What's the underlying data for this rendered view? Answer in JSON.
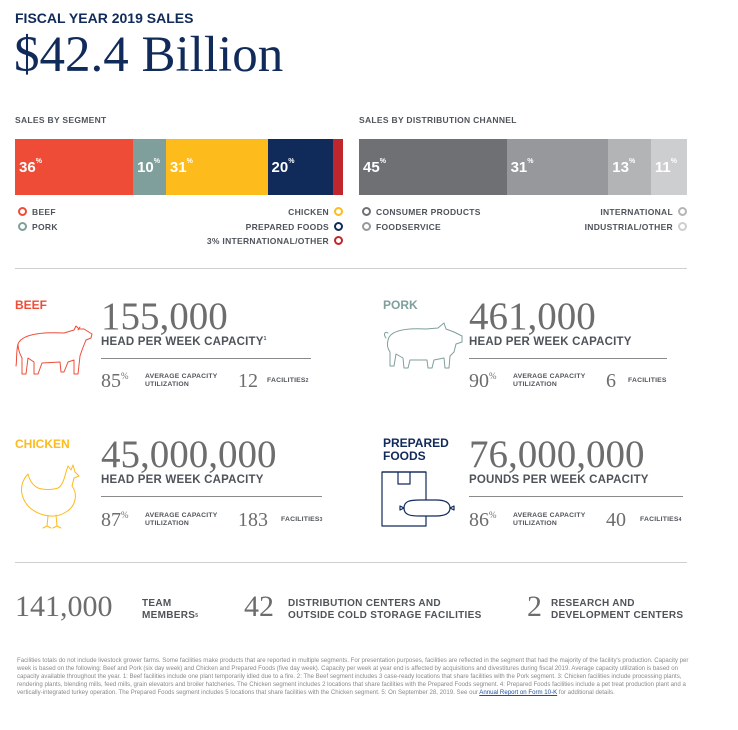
{
  "header": {
    "title": "FISCAL YEAR 2019 SALES",
    "total": "$42.4 Billion"
  },
  "segment_chart": {
    "label": "SALES BY SEGMENT",
    "segments": [
      {
        "name": "Beef",
        "value": 36,
        "text": "36",
        "color": "#ee4c37"
      },
      {
        "name": "Pork",
        "value": 10,
        "text": "10",
        "color": "#7e9f9b"
      },
      {
        "name": "Chicken",
        "value": 31,
        "text": "31",
        "color": "#fdbb1c"
      },
      {
        "name": "Prepared Foods",
        "value": 20,
        "text": "20",
        "color": "#102a5a"
      },
      {
        "name": "International/Other",
        "value": 3,
        "text": "",
        "color": "#c0262d"
      }
    ],
    "legend": {
      "beef": "BEEF",
      "pork": "PORK",
      "chicken": "CHICKEN",
      "prepared": "PREPARED FOODS",
      "intl": "3% INTERNATIONAL/OTHER"
    }
  },
  "channel_chart": {
    "label": "SALES BY DISTRIBUTION CHANNEL",
    "segments": [
      {
        "name": "Consumer Products",
        "value": 45,
        "text": "45",
        "color": "#6e7074"
      },
      {
        "name": "Foodservice",
        "value": 31,
        "text": "31",
        "color": "#96989b"
      },
      {
        "name": "International",
        "value": 13,
        "text": "13",
        "color": "#b3b4b6"
      },
      {
        "name": "Industrial/Other",
        "value": 11,
        "text": "11",
        "color": "#cdcecf"
      }
    ],
    "legend": {
      "consumer": "CONSUMER PRODUCTS",
      "foodservice": "FOODSERVICE",
      "international": "INTERNATIONAL",
      "industrial": "INDUSTRIAL/OTHER"
    }
  },
  "percent_sign": "%",
  "stats": {
    "beef": {
      "name": "BEEF",
      "color": "#ee4c37",
      "number": "155,000",
      "unit": "HEAD PER WEEK CAPACITY",
      "unit_note": "1",
      "util": "85",
      "util_label_1": "AVERAGE CAPACITY",
      "util_label_2": "UTILIZATION",
      "facilities": "12",
      "fac_label": "FACILITIES",
      "fac_note": "2"
    },
    "pork": {
      "name": "PORK",
      "color": "#7e9f9b",
      "number": "461,000",
      "unit": "HEAD PER WEEK CAPACITY",
      "unit_note": "",
      "util": "90",
      "util_label_1": "AVERAGE CAPACITY",
      "util_label_2": "UTILIZATION",
      "facilities": "6",
      "fac_label": "FACILITIES",
      "fac_note": ""
    },
    "chicken": {
      "name": "CHICKEN",
      "color": "#fdbb1c",
      "number": "45,000,000",
      "unit": "HEAD PER WEEK CAPACITY",
      "unit_note": "",
      "util": "87",
      "util_label_1": "AVERAGE CAPACITY",
      "util_label_2": "UTILIZATION",
      "facilities": "183",
      "fac_label": "FACILITIES",
      "fac_note": "3"
    },
    "prepared": {
      "name_1": "PREPARED",
      "name_2": "FOODS",
      "color": "#102a5a",
      "number": "76,000,000",
      "unit": "POUNDS PER WEEK CAPACITY",
      "unit_note": "",
      "util": "86",
      "util_label_1": "AVERAGE CAPACITY",
      "util_label_2": "UTILIZATION",
      "facilities": "40",
      "fac_label": "FACILITIES",
      "fac_note": "4"
    }
  },
  "footer_stats": {
    "team": {
      "number": "141,000",
      "label_1": "TEAM",
      "label_2": "MEMBERS",
      "note": "5"
    },
    "distribution": {
      "number": "42",
      "label_1": "DISTRIBUTION CENTERS AND",
      "label_2": "OUTSIDE COLD STORAGE FACILITIES"
    },
    "research": {
      "number": "2",
      "label_1": "RESEARCH AND",
      "label_2": "DEVELOPMENT CENTERS"
    }
  },
  "footnotes": {
    "text": "Facilities totals do not include livestock grower farms. Some facilities make products that are reported in multiple segments. For presentation purposes, facilities are reflected in the segment that had the majority of the facility's production. Capacity per week is based on the following: Beef and Pork (six day week) and Chicken and Prepared Foods (five day week). Capacity per week at year end is affected by acquisitions and divestitures during fiscal 2019. Average capacity utilization is based on capacity available throughout the year. 1: Beef facilities include one plant temporarily idled due to a fire. 2: The Beef segment includes 3 case-ready locations that share facilities with the Pork segment. 3: Chicken facilities include processing plants, rendering plants, blending mills, feed mills, grain elevators and broiler hatcheries. The Chicken segment includes 2 locations that share facilities with the Prepared Foods segment. 4: Prepared Foods facilities include a pet treat production plant and a vertically-integrated turkey operation. The Prepared Foods segment includes 5 locations that share facilities with the Chicken segment. 5: On September 28, 2019. See our",
    "link": "Annual Report on Form 10-K",
    "tail": "for additional details."
  },
  "icons": [
    "cow-icon",
    "pig-icon",
    "chicken-icon",
    "prepared-foods-icon"
  ]
}
